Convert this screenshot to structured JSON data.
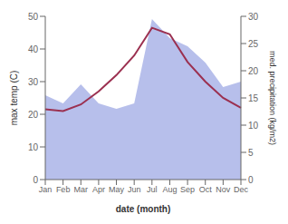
{
  "chart_data": {
    "type": "line",
    "categories": [
      "Jan",
      "Feb",
      "Mar",
      "Apr",
      "May",
      "Jun",
      "Jul",
      "Aug",
      "Sep",
      "Oct",
      "Nov",
      "Dec"
    ],
    "series": [
      {
        "type": "area",
        "axis": "y2",
        "color": "#aab4e8",
        "values": [
          15.5,
          14.0,
          17.5,
          14.0,
          13.0,
          14.0,
          29.5,
          26.0,
          24.5,
          21.5,
          17.0,
          18.0
        ]
      },
      {
        "type": "line",
        "color": "#9b3050",
        "values": [
          21.5,
          21.0,
          23.0,
          27.0,
          32.0,
          38.0,
          46.5,
          44.5,
          36.0,
          30.0,
          25.0,
          22.0
        ]
      }
    ],
    "xlabel": "date (month)",
    "ylabel": "max temp (C)",
    "y2label": "med. precipitation (kg/m2)",
    "ylim": [
      0,
      50
    ],
    "yticks": [
      0,
      10,
      20,
      30,
      40,
      50
    ],
    "y2lim": [
      0,
      30
    ],
    "y2ticks": [
      0,
      5,
      10,
      15,
      20,
      25,
      30
    ]
  }
}
